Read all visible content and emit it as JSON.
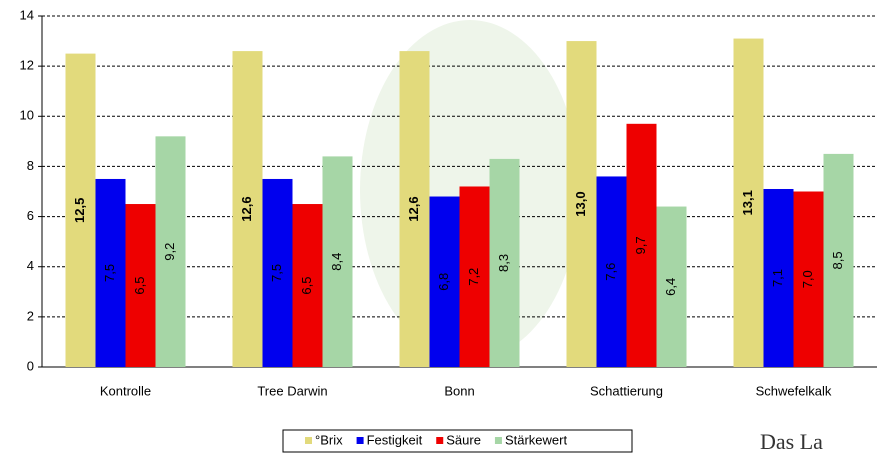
{
  "chart_data": {
    "type": "bar",
    "categories": [
      "Kontrolle",
      "Tree Darwin",
      "Bonn",
      "Schattierung",
      "Schwefelkalk"
    ],
    "series": [
      {
        "name": "°Brix",
        "color": "#e2da7c",
        "values": [
          12.5,
          12.6,
          12.6,
          13.0,
          13.1
        ],
        "value_labels": [
          "12,5",
          "12,6",
          "12,6",
          "13,0",
          "13,1"
        ]
      },
      {
        "name": "Festigkeit",
        "color": "#0000ee",
        "values": [
          7.5,
          7.5,
          6.8,
          7.6,
          7.1
        ],
        "value_labels": [
          "7,5",
          "7,5",
          "6,8",
          "7,6",
          "7,1"
        ]
      },
      {
        "name": "Säure",
        "color": "#ee0000",
        "values": [
          6.5,
          6.5,
          7.2,
          9.7,
          7.0
        ],
        "value_labels": [
          "6,5",
          "6,5",
          "7,2",
          "9,7",
          "7,0"
        ]
      },
      {
        "name": "Stärkewert",
        "color": "#a6d6a6",
        "values": [
          9.2,
          8.4,
          8.3,
          6.4,
          8.5
        ],
        "value_labels": [
          "9,2",
          "8,4",
          "8,3",
          "6,4",
          "8,5"
        ]
      }
    ],
    "ylim": [
      0,
      14
    ],
    "yticks": [
      0,
      2,
      4,
      6,
      8,
      10,
      12,
      14
    ],
    "grid": true,
    "legend": "bottom"
  },
  "logo_text": "Das La"
}
